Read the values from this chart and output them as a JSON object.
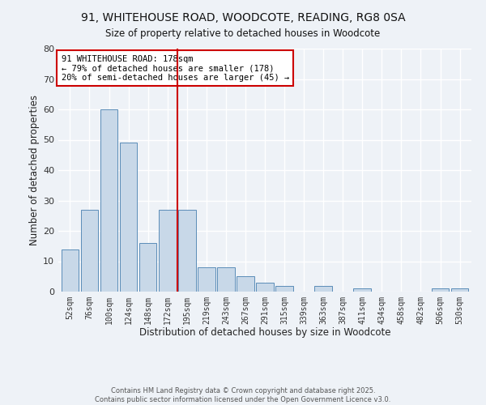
{
  "title_line1": "91, WHITEHOUSE ROAD, WOODCOTE, READING, RG8 0SA",
  "title_line2": "Size of property relative to detached houses in Woodcote",
  "xlabel": "Distribution of detached houses by size in Woodcote",
  "ylabel": "Number of detached properties",
  "bar_labels": [
    "52sqm",
    "76sqm",
    "100sqm",
    "124sqm",
    "148sqm",
    "172sqm",
    "195sqm",
    "219sqm",
    "243sqm",
    "267sqm",
    "291sqm",
    "315sqm",
    "339sqm",
    "363sqm",
    "387sqm",
    "411sqm",
    "434sqm",
    "458sqm",
    "482sqm",
    "506sqm",
    "530sqm"
  ],
  "bar_heights": [
    14,
    27,
    60,
    49,
    16,
    27,
    27,
    8,
    8,
    5,
    3,
    2,
    0,
    2,
    0,
    1,
    0,
    0,
    0,
    1,
    1
  ],
  "bar_color": "#c8d8e8",
  "bar_edge_color": "#5b8db8",
  "vline_x": 5.5,
  "vline_color": "#cc0000",
  "ylim": [
    0,
    80
  ],
  "yticks": [
    0,
    10,
    20,
    30,
    40,
    50,
    60,
    70,
    80
  ],
  "annotation_title": "91 WHITEHOUSE ROAD: 178sqm",
  "annotation_line2": "← 79% of detached houses are smaller (178)",
  "annotation_line3": "20% of semi-detached houses are larger (45) →",
  "annotation_box_facecolor": "#ffffff",
  "annotation_box_edgecolor": "#cc0000",
  "footer_line1": "Contains HM Land Registry data © Crown copyright and database right 2025.",
  "footer_line2": "Contains public sector information licensed under the Open Government Licence v3.0.",
  "background_color": "#eef2f7",
  "grid_color": "#ffffff",
  "grid_linewidth": 1.0
}
